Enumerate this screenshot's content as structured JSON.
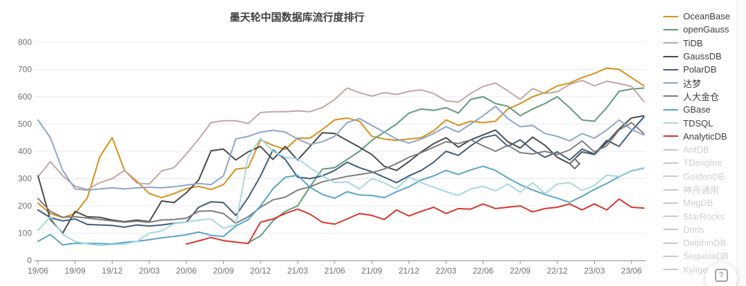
{
  "page": {
    "title": "墨天轮中国数据库流行度排行"
  },
  "help_button": {
    "icon_glyph": "?"
  },
  "chart_data": {
    "type": "line",
    "title": "墨天轮中国数据库流行度排行",
    "x_tick_labels": [
      "19/06",
      "19/09",
      "19/12",
      "20/03",
      "20/06",
      "20/09",
      "20/12",
      "21/03",
      "21/06",
      "21/09",
      "21/12",
      "22/03",
      "22/06",
      "22/09",
      "22/12",
      "23/03",
      "23/06"
    ],
    "x_unit": "month",
    "months_total": 50,
    "y_ticks": [
      0,
      100,
      200,
      300,
      400,
      500,
      600,
      700,
      800
    ],
    "ylim": [
      0,
      800
    ],
    "grid": true,
    "legend_position": "right",
    "colors": {
      "grid_line": "#e4eaf2",
      "axis_line": "#8b8f96",
      "axis_label": "#6e7079",
      "title_text": "#3f3f3f",
      "inactive_legend": "#cfcfcf"
    },
    "series": [
      {
        "name": "OceanBase",
        "color": "#db8e18",
        "active": true,
        "start_index": 0,
        "values": [
          210,
          172,
          157,
          172,
          230,
          380,
          450,
          330,
          290,
          245,
          230,
          245,
          263,
          272,
          260,
          278,
          335,
          340,
          442,
          422,
          407,
          448,
          448,
          480,
          515,
          522,
          510,
          455,
          445,
          440,
          445,
          450,
          475,
          515,
          495,
          510,
          505,
          510,
          555,
          575,
          600,
          615,
          640,
          650,
          670,
          685,
          705,
          700,
          670,
          640
        ]
      },
      {
        "name": "openGauss",
        "color": "#5f9c77",
        "active": true,
        "start_index": 17,
        "values": [
          65,
          90,
          145,
          180,
          200,
          270,
          335,
          340,
          370,
          400,
          440,
          470,
          500,
          540,
          555,
          550,
          560,
          540,
          590,
          600,
          575,
          565,
          530,
          555,
          575,
          600,
          560,
          515,
          510,
          560,
          620,
          628,
          632
        ]
      },
      {
        "name": "TiDB",
        "color": "#c3a5a0",
        "active": true,
        "start_index": 0,
        "values": [
          307,
          362,
          310,
          272,
          260,
          285,
          300,
          330,
          283,
          280,
          328,
          340,
          390,
          445,
          505,
          512,
          512,
          502,
          542,
          545,
          545,
          548,
          545,
          560,
          590,
          632,
          615,
          602,
          615,
          608,
          620,
          625,
          612,
          585,
          580,
          612,
          638,
          650,
          622,
          590,
          630,
          612,
          618,
          645,
          660,
          640,
          657,
          648,
          638,
          582
        ]
      },
      {
        "name": "GaussDB",
        "color": "#4a4a4a",
        "active": true,
        "start_index": 0,
        "values": [
          310,
          150,
          100,
          180,
          160,
          158,
          148,
          142,
          148,
          142,
          218,
          212,
          248,
          295,
          402,
          408,
          368,
          398,
          418,
          370,
          418,
          368,
          418,
          468,
          465,
          440,
          415,
          388,
          345,
          330,
          362,
          398,
          428,
          450,
          415,
          442,
          460,
          478,
          435,
          412,
          452,
          422,
          378,
          355,
          398,
          388,
          432,
          482,
          522,
          530
        ]
      },
      {
        "name": "PolarDB",
        "color": "#3e5c7a",
        "active": true,
        "start_index": 0,
        "values": [
          185,
          157,
          145,
          152,
          132,
          130,
          128,
          122,
          130,
          126,
          130,
          136,
          140,
          195,
          215,
          212,
          165,
          230,
          310,
          405,
          370,
          305,
          300,
          310,
          330,
          360,
          340,
          325,
          305,
          285,
          310,
          330,
          360,
          400,
          385,
          420,
          450,
          460,
          418,
          442,
          405,
          378,
          398,
          368,
          408,
          390,
          440,
          418,
          475,
          525
        ]
      },
      {
        "name": "达梦",
        "color": "#8aa5cc",
        "active": true,
        "start_index": 0,
        "values": [
          515,
          450,
          330,
          262,
          258,
          262,
          266,
          262,
          266,
          268,
          266,
          270,
          276,
          282,
          278,
          310,
          445,
          455,
          470,
          477,
          470,
          445,
          425,
          435,
          455,
          505,
          520,
          495,
          470,
          445,
          430,
          445,
          465,
          490,
          470,
          500,
          530,
          565,
          520,
          490,
          495,
          465,
          455,
          438,
          465,
          448,
          478,
          515,
          480,
          460
        ]
      },
      {
        "name": "人大金仓",
        "color": "#7d7d7d",
        "active": true,
        "start_index": 0,
        "values": [
          227,
          180,
          158,
          160,
          155,
          150,
          145,
          140,
          144,
          140,
          148,
          150,
          155,
          180,
          182,
          172,
          136,
          160,
          195,
          222,
          232,
          258,
          270,
          288,
          298,
          308,
          315,
          322,
          335,
          355,
          378,
          395,
          415,
          435,
          428,
          442,
          420,
          400,
          422,
          395,
          390,
          400,
          388,
          405,
          438,
          398,
          420,
          478,
          505,
          465
        ]
      },
      {
        "name": "GBase",
        "color": "#58a4c8",
        "active": true,
        "start_index": 0,
        "values": [
          70,
          95,
          57,
          63,
          62,
          62,
          60,
          66,
          70,
          76,
          83,
          88,
          94,
          104,
          92,
          88,
          126,
          150,
          200,
          262,
          305,
          312,
          268,
          242,
          228,
          252,
          240,
          238,
          230,
          252,
          270,
          295,
          310,
          330,
          315,
          332,
          345,
          330,
          302,
          278,
          258,
          242,
          228,
          213,
          235,
          260,
          282,
          307,
          328,
          338
        ]
      },
      {
        "name": "TDSQL",
        "color": "#a5d8de",
        "active": true,
        "start_index": 0,
        "values": [
          110,
          160,
          95,
          70,
          60,
          55,
          58,
          60,
          70,
          100,
          108,
          135,
          140,
          148,
          152,
          118,
          130,
          380,
          448,
          400,
          378,
          373,
          340,
          310,
          285,
          288,
          262,
          300,
          285,
          262,
          305,
          285,
          268,
          252,
          238,
          262,
          272,
          255,
          280,
          250,
          285,
          245,
          280,
          285,
          257,
          275,
          312,
          308,
          330,
          340
        ]
      },
      {
        "name": "AnalyticDB",
        "color": "#d8352c",
        "active": true,
        "start_index": 12,
        "values": [
          60,
          72,
          84,
          73,
          67,
          62,
          140,
          152,
          172,
          188,
          170,
          140,
          133,
          152,
          172,
          165,
          150,
          185,
          163,
          180,
          195,
          172,
          190,
          188,
          207,
          190,
          195,
          200,
          178,
          190,
          195,
          207,
          185,
          207,
          185,
          225,
          195,
          192
        ]
      },
      {
        "name": "AntDB",
        "color": "#c8c8c8",
        "active": false,
        "start_index": 0,
        "values": []
      },
      {
        "name": "TDengine",
        "color": "#c8c8c8",
        "active": false,
        "start_index": 0,
        "values": []
      },
      {
        "name": "GoldenDB",
        "color": "#c8c8c8",
        "active": false,
        "start_index": 0,
        "values": []
      },
      {
        "name": "神舟通用",
        "color": "#c8c8c8",
        "active": false,
        "start_index": 0,
        "values": []
      },
      {
        "name": "MogDB",
        "color": "#c8c8c8",
        "active": false,
        "start_index": 0,
        "values": []
      },
      {
        "name": "StarRocks",
        "color": "#c8c8c8",
        "active": false,
        "start_index": 0,
        "values": []
      },
      {
        "name": "Doris",
        "color": "#c8c8c8",
        "active": false,
        "start_index": 0,
        "values": []
      },
      {
        "name": "DolphinDB",
        "color": "#c8c8c8",
        "active": false,
        "start_index": 0,
        "values": []
      },
      {
        "name": "SequoiaDB",
        "color": "#c8c8c8",
        "active": false,
        "start_index": 0,
        "values": []
      },
      {
        "name": "Kyligence",
        "color": "#c8c8c8",
        "active": false,
        "start_index": 0,
        "values": []
      }
    ]
  }
}
